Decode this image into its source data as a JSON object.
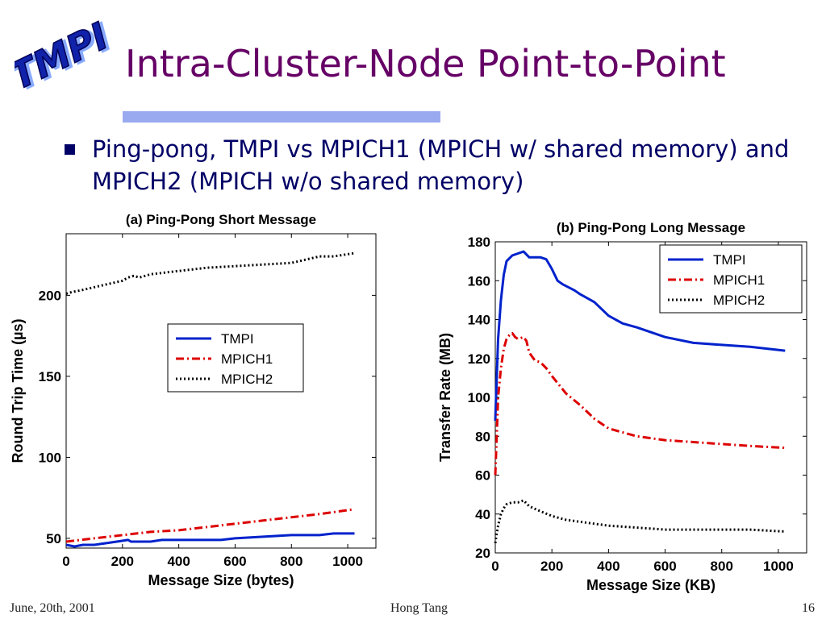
{
  "slide": {
    "logo_text": "TMPI",
    "title": "Intra-Cluster-Node Point-to-Point",
    "bullet": "Ping-pong, TMPI vs MPICH1 (MPICH w/ shared memory) and MPICH2 (MPICH w/o shared memory)",
    "footer_date": "June, 20th, 2001",
    "footer_author": "Hong Tang",
    "footer_page": "16"
  },
  "chart_data": [
    {
      "type": "line",
      "title": "(a) Ping-Pong Short Message",
      "xlabel": "Message Size (bytes)",
      "ylabel": "Round Trip Time (µs)",
      "xlim": [
        0,
        1100
      ],
      "ylim": [
        44,
        238
      ],
      "xticks": [
        "0",
        "200",
        "400",
        "600",
        "800",
        "1000"
      ],
      "yticks": [
        "50",
        "100",
        "150",
        "200"
      ],
      "legend_position": "right",
      "series": [
        {
          "name": "TMPI",
          "color": "#0022cc",
          "dash": "solid",
          "x": [
            0,
            30,
            60,
            100,
            140,
            180,
            220,
            230,
            260,
            300,
            340,
            400,
            500,
            550,
            600,
            700,
            800,
            900,
            950,
            1024
          ],
          "y": [
            46,
            45,
            46,
            46,
            47,
            48,
            49,
            48,
            48,
            48,
            49,
            49,
            49,
            49,
            50,
            51,
            52,
            52,
            53,
            53
          ]
        },
        {
          "name": "MPICH1",
          "color": "#dd0000",
          "dash": "dashdot",
          "x": [
            0,
            50,
            100,
            150,
            200,
            250,
            300,
            400,
            500,
            600,
            700,
            800,
            900,
            1024
          ],
          "y": [
            48,
            49,
            50,
            51,
            52,
            53,
            54,
            55,
            57,
            59,
            61,
            63,
            65,
            68
          ]
        },
        {
          "name": "MPICH2",
          "color": "#000000",
          "dash": "dotted",
          "x": [
            0,
            20,
            50,
            100,
            150,
            200,
            220,
            240,
            260,
            300,
            350,
            400,
            450,
            500,
            600,
            700,
            800,
            850,
            900,
            950,
            1024
          ],
          "y": [
            201,
            202,
            203,
            205,
            207,
            209,
            211,
            212,
            211,
            213,
            214,
            215,
            216,
            217,
            218,
            219,
            220,
            222,
            224,
            224,
            226
          ]
        }
      ]
    },
    {
      "type": "line",
      "title": "(b) Ping-Pong Long Message",
      "xlabel": "Message Size (KB)",
      "ylabel": "Transfer Rate (MB)",
      "xlim": [
        0,
        1100
      ],
      "ylim": [
        20,
        180
      ],
      "xticks": [
        "0",
        "200",
        "400",
        "600",
        "800",
        "1000"
      ],
      "yticks": [
        "20",
        "40",
        "60",
        "80",
        "100",
        "120",
        "140",
        "160",
        "180"
      ],
      "legend_position": "top-right",
      "series": [
        {
          "name": "TMPI",
          "color": "#0022cc",
          "dash": "solid",
          "x": [
            0,
            5,
            10,
            20,
            30,
            40,
            60,
            80,
            100,
            120,
            160,
            180,
            200,
            220,
            240,
            280,
            300,
            350,
            400,
            450,
            500,
            600,
            700,
            800,
            900,
            1024
          ],
          "y": [
            88,
            110,
            130,
            150,
            163,
            170,
            173,
            174,
            175,
            172,
            172,
            171,
            166,
            160,
            158,
            155,
            153,
            149,
            142,
            138,
            136,
            131,
            128,
            127,
            126,
            124
          ]
        },
        {
          "name": "MPICH1",
          "color": "#dd0000",
          "dash": "dashdot",
          "x": [
            0,
            5,
            10,
            20,
            30,
            40,
            50,
            60,
            70,
            80,
            100,
            110,
            120,
            140,
            160,
            180,
            200,
            250,
            300,
            350,
            400,
            500,
            600,
            700,
            800,
            900,
            1024
          ],
          "y": [
            60,
            80,
            100,
            115,
            125,
            130,
            132,
            133,
            131,
            130,
            131,
            129,
            123,
            119,
            118,
            115,
            111,
            102,
            96,
            89,
            84,
            80,
            78,
            77,
            76,
            75,
            74
          ]
        },
        {
          "name": "MPICH2",
          "color": "#000000",
          "dash": "dotted",
          "x": [
            0,
            5,
            10,
            20,
            30,
            40,
            60,
            80,
            100,
            120,
            150,
            200,
            250,
            300,
            400,
            500,
            600,
            700,
            800,
            900,
            1024
          ],
          "y": [
            25,
            30,
            34,
            40,
            43,
            45,
            46,
            46,
            47,
            44,
            42,
            39,
            37,
            36,
            34,
            33,
            32,
            32,
            32,
            32,
            31
          ]
        }
      ]
    }
  ]
}
